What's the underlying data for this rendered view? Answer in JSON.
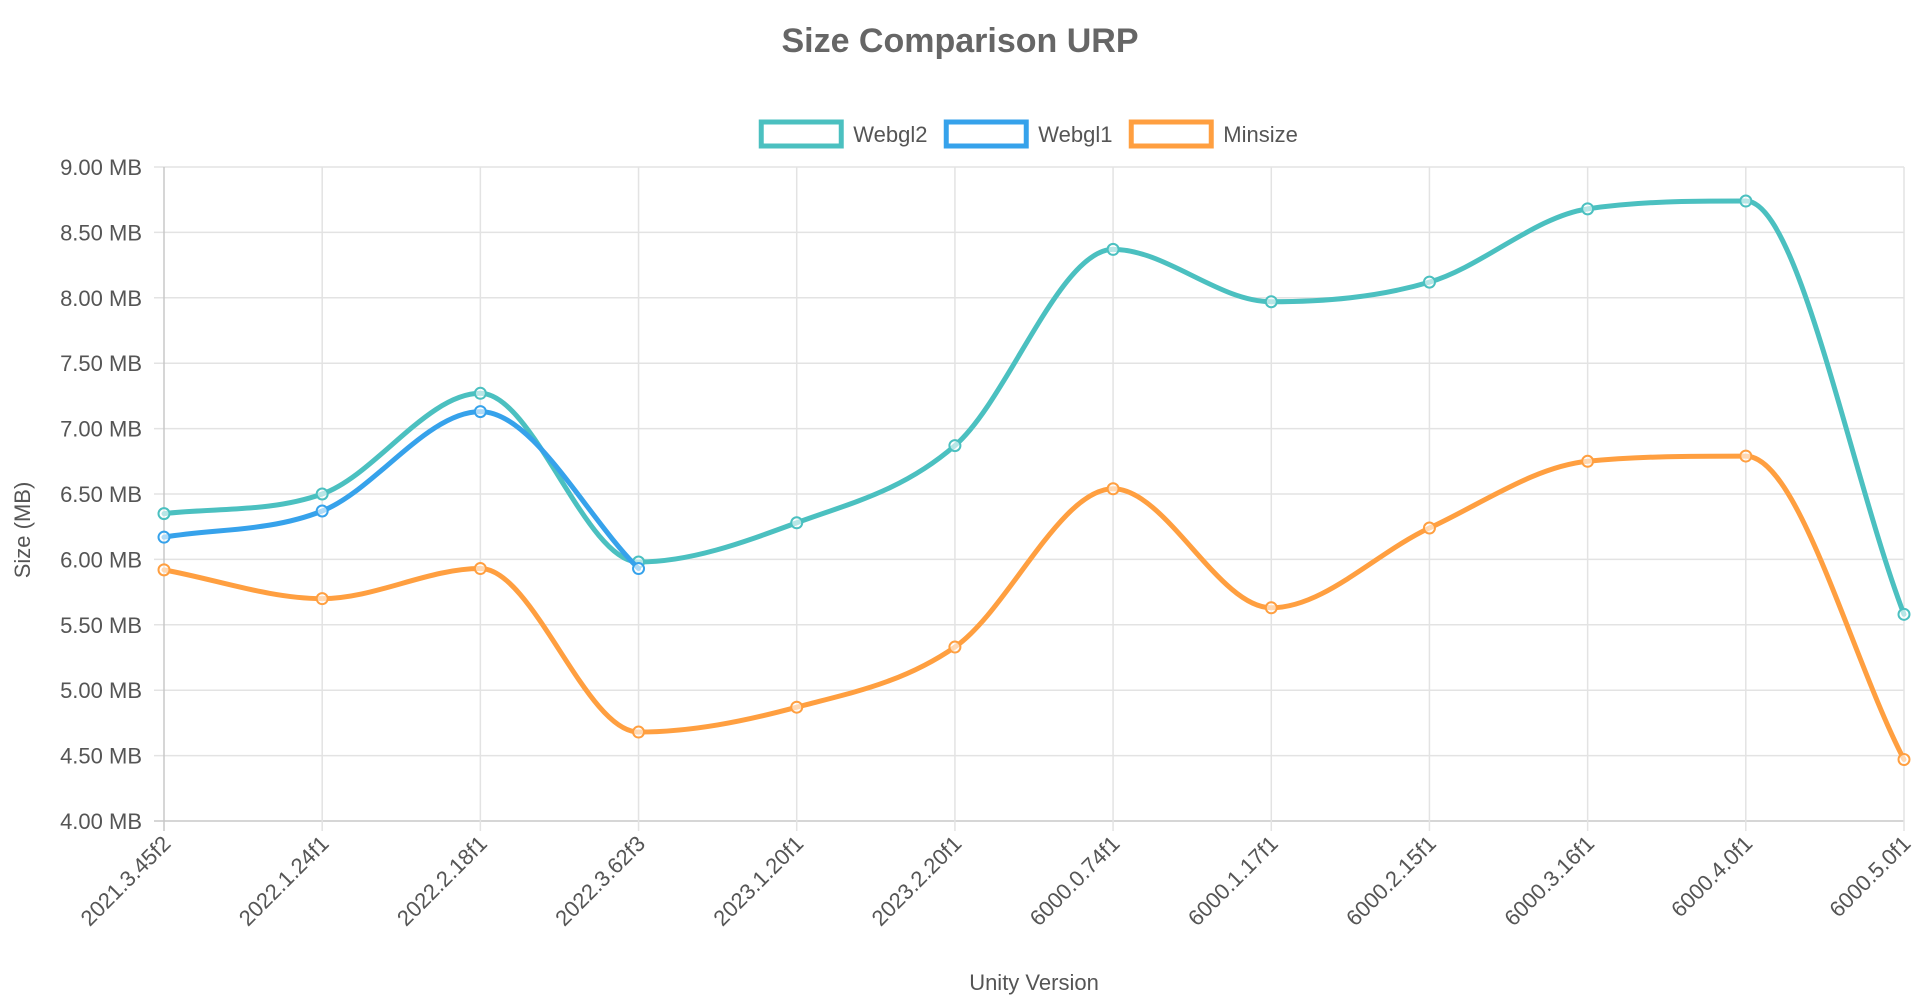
{
  "chart_data": {
    "type": "line",
    "title": "Size Comparison URP",
    "xlabel": "Unity Version",
    "ylabel": "Size (MB)",
    "ylim": [
      4.0,
      9.0
    ],
    "y_ticks": [
      "4.00 MB",
      "4.50 MB",
      "5.00 MB",
      "5.50 MB",
      "6.00 MB",
      "6.50 MB",
      "7.00 MB",
      "7.50 MB",
      "8.00 MB",
      "8.50 MB",
      "9.00 MB"
    ],
    "grid": true,
    "legend_position": "top",
    "categories": [
      "2021.3.45f2",
      "2022.1.24f1",
      "2022.2.18f1",
      "2022.3.62f3",
      "2023.1.20f1",
      "2023.2.20f1",
      "6000.0.74f1",
      "6000.1.17f1",
      "6000.2.15f1",
      "6000.3.16f1",
      "6000.4.0f1",
      "6000.5.0f1"
    ],
    "series": [
      {
        "name": "Webgl2",
        "color": "#4bc0c0",
        "values": [
          6.35,
          6.5,
          7.27,
          5.98,
          6.28,
          6.87,
          8.37,
          7.97,
          8.12,
          8.68,
          8.74,
          5.58
        ]
      },
      {
        "name": "Webgl1",
        "color": "#36a2eb",
        "values": [
          6.17,
          6.37,
          7.13,
          5.93,
          null,
          null,
          null,
          null,
          null,
          null,
          null,
          null
        ]
      },
      {
        "name": "Minsize",
        "color": "#ff9f40",
        "values": [
          5.92,
          5.7,
          5.93,
          4.68,
          4.87,
          5.33,
          6.54,
          5.63,
          6.24,
          6.75,
          6.79,
          4.47
        ]
      }
    ]
  }
}
